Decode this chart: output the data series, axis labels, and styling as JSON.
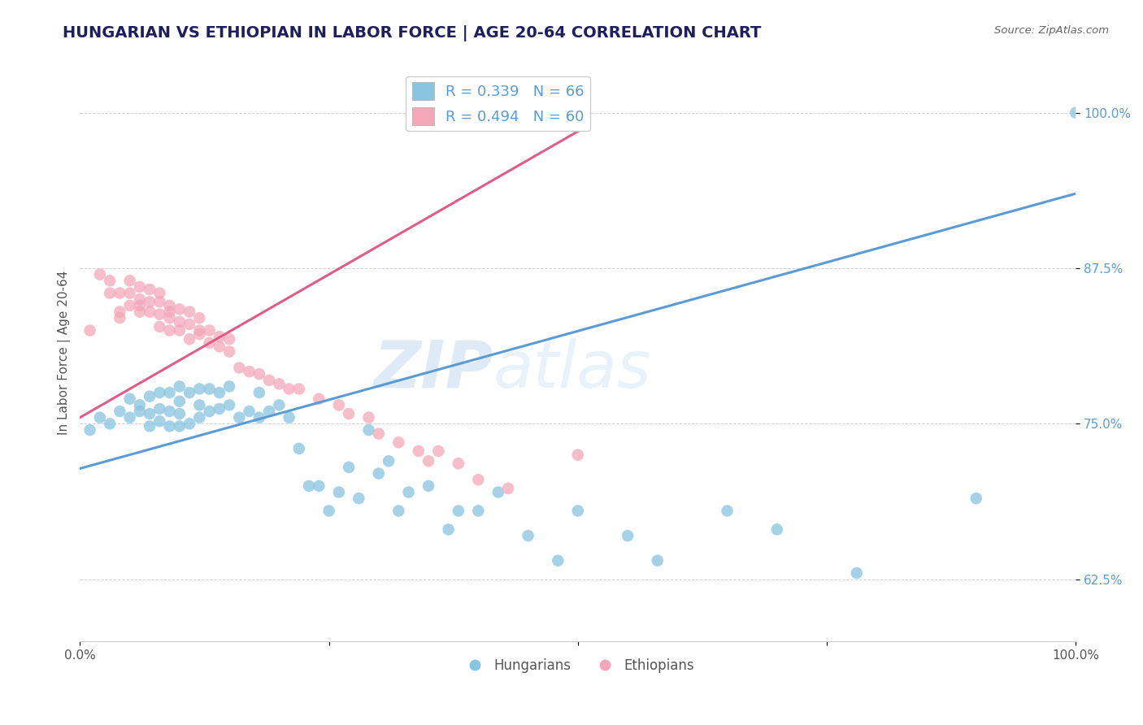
{
  "title": "HUNGARIAN VS ETHIOPIAN IN LABOR FORCE | AGE 20-64 CORRELATION CHART",
  "source": "Source: ZipAtlas.com",
  "ylabel": "In Labor Force | Age 20-64",
  "xlim": [
    0.0,
    1.0
  ],
  "ylim": [
    0.575,
    1.04
  ],
  "yticks": [
    0.625,
    0.75,
    0.875,
    1.0
  ],
  "ytick_labels": [
    "62.5%",
    "75.0%",
    "87.5%",
    "100.0%"
  ],
  "xticks": [
    0.0,
    0.25,
    0.5,
    0.75,
    1.0
  ],
  "xtick_labels": [
    "0.0%",
    "",
    "",
    "",
    "100.0%"
  ],
  "watermark_zip": "ZIP",
  "watermark_atlas": "atlas",
  "legend_r_blue": "R = 0.339",
  "legend_n_blue": "N = 66",
  "legend_r_pink": "R = 0.494",
  "legend_n_pink": "N = 60",
  "blue_color": "#89c4e1",
  "pink_color": "#f4a7b9",
  "blue_line_color": "#5b9bd5",
  "pink_line_color": "#e05c8a",
  "title_color": "#1f1f5e",
  "source_color": "#666666",
  "axis_label_color": "#555555",
  "tick_color_y": "#5b9bd5",
  "tick_color_x": "#555555",
  "blue_scatter_x": [
    0.01,
    0.02,
    0.03,
    0.04,
    0.05,
    0.05,
    0.06,
    0.06,
    0.07,
    0.07,
    0.07,
    0.08,
    0.08,
    0.08,
    0.09,
    0.09,
    0.09,
    0.1,
    0.1,
    0.1,
    0.1,
    0.11,
    0.11,
    0.12,
    0.12,
    0.12,
    0.13,
    0.13,
    0.14,
    0.14,
    0.15,
    0.15,
    0.16,
    0.17,
    0.18,
    0.18,
    0.19,
    0.2,
    0.21,
    0.22,
    0.23,
    0.24,
    0.25,
    0.26,
    0.27,
    0.28,
    0.29,
    0.3,
    0.31,
    0.32,
    0.33,
    0.35,
    0.37,
    0.38,
    0.4,
    0.42,
    0.45,
    0.48,
    0.5,
    0.55,
    0.58,
    0.65,
    0.7,
    0.78,
    0.9,
    1.0
  ],
  "blue_scatter_y": [
    0.745,
    0.755,
    0.75,
    0.76,
    0.755,
    0.77,
    0.76,
    0.765,
    0.748,
    0.758,
    0.772,
    0.752,
    0.762,
    0.775,
    0.748,
    0.76,
    0.775,
    0.748,
    0.758,
    0.768,
    0.78,
    0.75,
    0.775,
    0.755,
    0.765,
    0.778,
    0.76,
    0.778,
    0.762,
    0.775,
    0.765,
    0.78,
    0.755,
    0.76,
    0.755,
    0.775,
    0.76,
    0.765,
    0.755,
    0.73,
    0.7,
    0.7,
    0.68,
    0.695,
    0.715,
    0.69,
    0.745,
    0.71,
    0.72,
    0.68,
    0.695,
    0.7,
    0.665,
    0.68,
    0.68,
    0.695,
    0.66,
    0.64,
    0.68,
    0.66,
    0.64,
    0.68,
    0.665,
    0.63,
    0.69,
    1.0
  ],
  "pink_scatter_x": [
    0.01,
    0.02,
    0.03,
    0.03,
    0.04,
    0.04,
    0.04,
    0.05,
    0.05,
    0.05,
    0.06,
    0.06,
    0.06,
    0.06,
    0.07,
    0.07,
    0.07,
    0.08,
    0.08,
    0.08,
    0.08,
    0.09,
    0.09,
    0.09,
    0.09,
    0.1,
    0.1,
    0.1,
    0.11,
    0.11,
    0.11,
    0.12,
    0.12,
    0.12,
    0.13,
    0.13,
    0.14,
    0.14,
    0.15,
    0.15,
    0.16,
    0.17,
    0.18,
    0.19,
    0.2,
    0.21,
    0.22,
    0.24,
    0.26,
    0.27,
    0.29,
    0.3,
    0.32,
    0.34,
    0.35,
    0.36,
    0.38,
    0.4,
    0.43,
    0.5
  ],
  "pink_scatter_y": [
    0.825,
    0.87,
    0.865,
    0.855,
    0.84,
    0.855,
    0.835,
    0.855,
    0.845,
    0.865,
    0.845,
    0.85,
    0.84,
    0.86,
    0.84,
    0.848,
    0.858,
    0.838,
    0.848,
    0.855,
    0.828,
    0.835,
    0.845,
    0.825,
    0.84,
    0.832,
    0.842,
    0.825,
    0.83,
    0.84,
    0.818,
    0.822,
    0.835,
    0.825,
    0.815,
    0.825,
    0.812,
    0.82,
    0.808,
    0.818,
    0.795,
    0.792,
    0.79,
    0.785,
    0.782,
    0.778,
    0.778,
    0.77,
    0.765,
    0.758,
    0.755,
    0.742,
    0.735,
    0.728,
    0.72,
    0.728,
    0.718,
    0.705,
    0.698,
    0.725
  ],
  "blue_trend_x": [
    0.0,
    1.0
  ],
  "blue_trend_y": [
    0.714,
    0.935
  ],
  "pink_trend_x": [
    0.0,
    0.5
  ],
  "pink_trend_y": [
    0.755,
    0.985
  ]
}
